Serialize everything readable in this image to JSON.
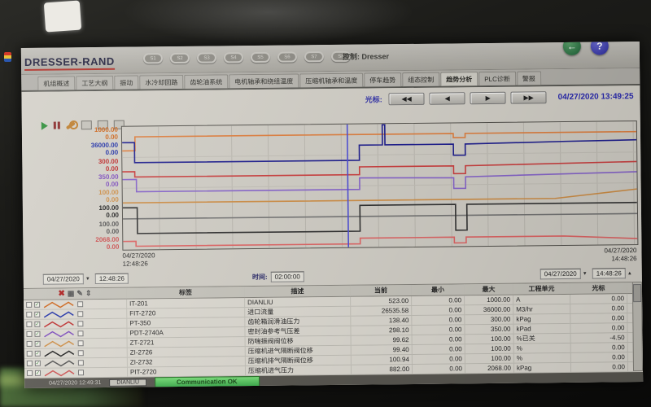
{
  "window": {
    "brand": "DRESSER-RAND",
    "title": "控制: Dresser",
    "s_buttons": [
      "S1",
      "S2",
      "S3",
      "S4",
      "S5",
      "S6",
      "S7",
      "S8"
    ]
  },
  "tabs": [
    "机组概述",
    "工艺大纲",
    "振动",
    "水冷却回路",
    "齿轮油系统",
    "电机轴承和绕组温度",
    "压缩机轴承和温度",
    "停车趋势",
    "组态控制",
    "趋势分析",
    "PLC诊断",
    "警报"
  ],
  "active_tab": 9,
  "cursor_bar": {
    "label": "光标:",
    "buttons": [
      "◀◀",
      "◀",
      "▶",
      "▶▶"
    ],
    "datetime": "04/27/2020 13:49:25"
  },
  "trend": {
    "axes": [
      {
        "max": "1000.00",
        "min": "0.00",
        "color": "#d0681e"
      },
      {
        "max": "36000.00",
        "min": "0.00",
        "color": "#2233aa"
      },
      {
        "max": "300.00",
        "min": "0.00",
        "color": "#c03030"
      },
      {
        "max": "350.00",
        "min": "0.00",
        "color": "#8050c0"
      },
      {
        "max": "100.00",
        "min": "0.00",
        "color": "#d09048"
      },
      {
        "max": "100.00",
        "min": "0.00",
        "color": "#222222"
      },
      {
        "max": "100.00",
        "min": "0.00",
        "color": "#555555"
      },
      {
        "max": "2068.00",
        "min": "0.00",
        "color": "#d05555"
      }
    ],
    "x_start_date": "04/27/2020",
    "x_start_time": "12:48:26",
    "x_end_date": "04/27/2020",
    "x_end_time": "14:48:26"
  },
  "time_controls": {
    "start_date": "04/27/2020",
    "start_time": "12:48:26",
    "span_label": "时间:",
    "span": "02:00:00",
    "end_date": "04/27/2020",
    "end_time": "14:48:26"
  },
  "table": {
    "headers": [
      "标签",
      "描述",
      "当前",
      "最小",
      "最大",
      "工程单元",
      "光标"
    ],
    "rows": [
      {
        "tag": "IT-201",
        "desc": "DIANLIU",
        "current": "523.00",
        "min": "0.00",
        "max": "1000.00",
        "unit": "A",
        "cursor": "0.00",
        "color": "#d0681e"
      },
      {
        "tag": "FIT-2720",
        "desc": "进口流量",
        "current": "26535.58",
        "min": "0.00",
        "max": "36000.00",
        "unit": "M3/hr",
        "cursor": "0.00",
        "color": "#2233aa"
      },
      {
        "tag": "PT-350",
        "desc": "齿轮箱润滑油压力",
        "current": "138.40",
        "min": "0.00",
        "max": "300.00",
        "unit": "kPag",
        "cursor": "0.00",
        "color": "#c03030"
      },
      {
        "tag": "PDT-2740A",
        "desc": "密封油参考气压差",
        "current": "298.10",
        "min": "0.00",
        "max": "350.00",
        "unit": "kPad",
        "cursor": "0.00",
        "color": "#8050c0"
      },
      {
        "tag": "ZT-2721",
        "desc": "防喘振阀阀位移",
        "current": "99.62",
        "min": "0.00",
        "max": "100.00",
        "unit": "%已关",
        "cursor": "-4.50",
        "color": "#d09048"
      },
      {
        "tag": "ZI-2726",
        "desc": "压缩机进气隔断阀位移",
        "current": "99.40",
        "min": "0.00",
        "max": "100.00",
        "unit": "%",
        "cursor": "0.00",
        "color": "#222222"
      },
      {
        "tag": "ZI-2732",
        "desc": "压缩机排气隔断阀位移",
        "current": "100.94",
        "min": "0.00",
        "max": "100.00",
        "unit": "%",
        "cursor": "0.00",
        "color": "#555555"
      },
      {
        "tag": "PIT-2720",
        "desc": "压缩机进气压力",
        "current": "882.00",
        "min": "0.00",
        "max": "2068.00",
        "unit": "kPag",
        "cursor": "0.00",
        "color": "#d05555"
      }
    ]
  },
  "status_bar": {
    "left_datetime": "04/27/2020 12:49:31",
    "tag_box": "DIANLIU",
    "comm_button": "Communication OK"
  },
  "chart_data": {
    "type": "line",
    "note": "trend window 12:48:26 to 14:48:26, coords normalized x 0-1000, y 0-300 (top=series max)",
    "x_range": [
      "12:48:26",
      "14:48:26"
    ],
    "cursor_x": 438,
    "grid_x_step": 71,
    "series": [
      {
        "name": "ZT-2721",
        "color": "#d09048",
        "points": [
          [
            0,
            186
          ],
          [
            841,
            186
          ],
          [
            1000,
            165
          ]
        ]
      },
      {
        "name": "ZI-2732",
        "color": "#777777",
        "points": [
          [
            0,
            225
          ],
          [
            1000,
            225
          ]
        ]
      },
      {
        "name": "PIT-2720",
        "color": "#e06666",
        "points": [
          [
            0,
            280
          ],
          [
            25,
            280
          ],
          [
            25,
            292
          ],
          [
            461,
            292
          ],
          [
            461,
            278
          ],
          [
            644,
            278
          ],
          [
            644,
            292
          ],
          [
            667,
            292
          ],
          [
            667,
            278
          ],
          [
            857,
            278
          ],
          [
            1000,
            286
          ]
        ]
      },
      {
        "name": "ZI-2726",
        "color": "#333333",
        "points": [
          [
            0,
            198
          ],
          [
            28,
            198
          ],
          [
            28,
            261
          ],
          [
            461,
            261
          ],
          [
            461,
            198
          ],
          [
            647,
            198
          ],
          [
            647,
            261
          ],
          [
            669,
            261
          ],
          [
            669,
            198
          ],
          [
            1000,
            198
          ]
        ]
      },
      {
        "name": "PDT-2740A",
        "color": "#8866cc",
        "points": [
          [
            0,
            129
          ],
          [
            27,
            129
          ],
          [
            27,
            159
          ],
          [
            461,
            159
          ],
          [
            461,
            131
          ],
          [
            644,
            133
          ],
          [
            644,
            159
          ],
          [
            667,
            159
          ],
          [
            667,
            131
          ],
          [
            1000,
            123
          ]
        ]
      },
      {
        "name": "PT-350",
        "color": "#cc4040",
        "points": [
          [
            0,
            110
          ],
          [
            24,
            110
          ],
          [
            24,
            123
          ],
          [
            461,
            123
          ],
          [
            461,
            104
          ],
          [
            644,
            104
          ],
          [
            644,
            123
          ],
          [
            667,
            123
          ],
          [
            667,
            104
          ],
          [
            1000,
            98
          ]
        ]
      },
      {
        "name": "IT-201",
        "color": "#e08040",
        "points": [
          [
            0,
            59
          ],
          [
            25,
            59
          ],
          [
            25,
            25
          ],
          [
            644,
            25
          ],
          [
            644,
            35
          ],
          [
            667,
            35
          ],
          [
            667,
            25
          ],
          [
            1000,
            25
          ]
        ]
      },
      {
        "name": "FIT-2720",
        "color": "#202090",
        "points": [
          [
            0,
            39
          ],
          [
            24,
            39
          ],
          [
            24,
            88
          ],
          [
            461,
            88
          ],
          [
            461,
            51
          ],
          [
            506,
            51
          ],
          [
            506,
            2
          ],
          [
            511,
            2
          ],
          [
            511,
            51
          ],
          [
            644,
            51
          ],
          [
            644,
            78
          ],
          [
            667,
            78
          ],
          [
            667,
            51
          ],
          [
            864,
            47
          ],
          [
            1000,
            45
          ]
        ]
      }
    ]
  }
}
